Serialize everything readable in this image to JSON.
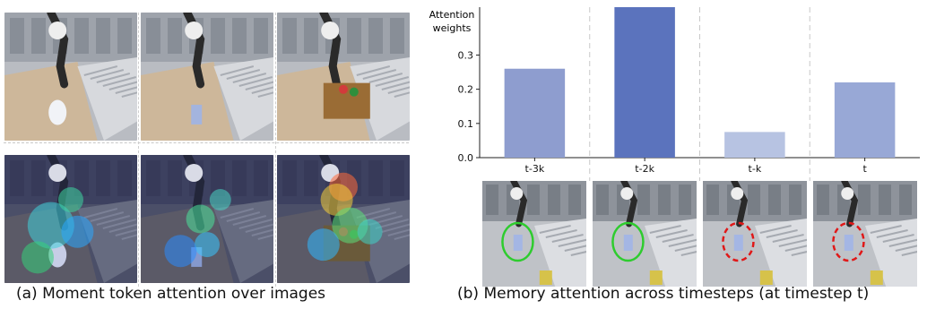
{
  "panel_a": {
    "caption": "(a) Moment token attention over images",
    "rows": [
      "rgb",
      "attention"
    ],
    "tiles": 3
  },
  "panel_b": {
    "caption": "(b) Memory attention across timesteps (at timestep t)",
    "ylabel_line1": "Attention",
    "ylabel_line2": "weights"
  },
  "chart_data": {
    "type": "bar",
    "title": "",
    "xlabel": "",
    "ylabel": "Attention weights",
    "categories": [
      "t-3k",
      "t-2k",
      "t-k",
      "t"
    ],
    "values": [
      0.26,
      0.44,
      0.075,
      0.22
    ],
    "ylim": [
      0,
      0.44
    ],
    "yticks": [
      0.0,
      0.1,
      0.2,
      0.3
    ],
    "ytick_labels": [
      "0.0",
      "0.1",
      "0.2",
      "0.3"
    ],
    "bar_colors": [
      "#8e9dcf",
      "#5b73bd",
      "#b7c3e2",
      "#98a8d6"
    ],
    "grid": false
  },
  "memory_frames": {
    "markers": [
      "green-solid",
      "green-solid",
      "red-dashed",
      "red-dashed"
    ],
    "colors": {
      "green": "#2ecc2e",
      "red": "#e01818"
    }
  }
}
